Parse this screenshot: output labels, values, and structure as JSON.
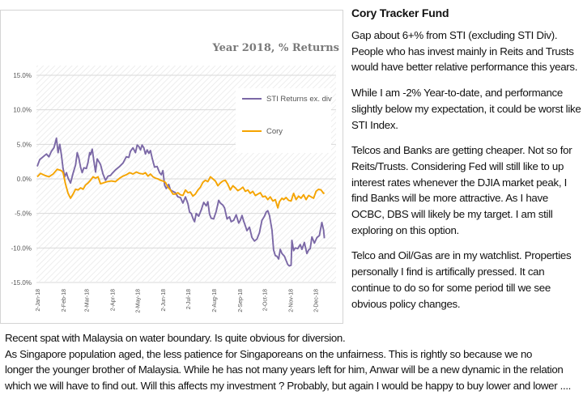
{
  "chart_data": {
    "type": "line",
    "title": "Year 2018, % Returns",
    "xlabel": "",
    "ylabel": "",
    "ylim": [
      -15,
      15
    ],
    "y_ticks": [
      15,
      10,
      5,
      0,
      -5,
      -10,
      -15
    ],
    "y_tick_labels": [
      "15.0%",
      "10.0%",
      "5.0%",
      "0.0%",
      "-5.0%",
      "-10.0%",
      "-15.0%"
    ],
    "x_range_days": [
      0,
      360
    ],
    "x_ticks": [
      {
        "day": 1,
        "label": "2-Jan-18"
      },
      {
        "day": 32,
        "label": "2-Feb-18"
      },
      {
        "day": 60,
        "label": "2-Mar-18"
      },
      {
        "day": 91,
        "label": "2-Apr-18"
      },
      {
        "day": 121,
        "label": "2-May-18"
      },
      {
        "day": 152,
        "label": "2-Jun-18"
      },
      {
        "day": 182,
        "label": "2-Jul-18"
      },
      {
        "day": 213,
        "label": "2-Aug-18"
      },
      {
        "day": 244,
        "label": "2-Sep-18"
      },
      {
        "day": 274,
        "label": "2-Oct-18"
      },
      {
        "day": 305,
        "label": "2-Nov-18"
      },
      {
        "day": 335,
        "label": "2-Dec-18"
      }
    ],
    "legend_position": "upper-right",
    "series": [
      {
        "name": "STI Returns ex. div",
        "color": "#7b68a6",
        "points": [
          [
            1,
            1.8
          ],
          [
            4,
            2.8
          ],
          [
            8,
            3.2
          ],
          [
            12,
            3.6
          ],
          [
            15,
            3.2
          ],
          [
            18,
            4.0
          ],
          [
            21,
            4.5
          ],
          [
            24,
            5.9
          ],
          [
            26,
            3.8
          ],
          [
            28,
            5.0
          ],
          [
            30,
            3.5
          ],
          [
            32,
            1.5
          ],
          [
            34,
            0.3
          ],
          [
            36,
            0.9
          ],
          [
            38,
            0.1
          ],
          [
            41,
            -0.6
          ],
          [
            44,
            0.8
          ],
          [
            47,
            2.0
          ],
          [
            49,
            3.8
          ],
          [
            51,
            3.0
          ],
          [
            53,
            1.7
          ],
          [
            55,
            0.9
          ],
          [
            57,
            1.6
          ],
          [
            60,
            1.5
          ],
          [
            62,
            2.4
          ],
          [
            64,
            3.8
          ],
          [
            65,
            3.5
          ],
          [
            67,
            4.3
          ],
          [
            69,
            2.6
          ],
          [
            71,
            1.0
          ],
          [
            73,
            2.9
          ],
          [
            75,
            2.5
          ],
          [
            77,
            2.1
          ],
          [
            80,
            0.7
          ],
          [
            83,
            -0.2
          ],
          [
            86,
            0.4
          ],
          [
            89,
            0.5
          ],
          [
            91,
            0.8
          ],
          [
            95,
            1.3
          ],
          [
            100,
            1.8
          ],
          [
            104,
            2.3
          ],
          [
            108,
            3.2
          ],
          [
            111,
            3.1
          ],
          [
            113,
            4.0
          ],
          [
            116,
            4.5
          ],
          [
            119,
            3.8
          ],
          [
            121,
            4.9
          ],
          [
            123,
            4.7
          ],
          [
            125,
            4.2
          ],
          [
            127,
            4.9
          ],
          [
            129,
            4.5
          ],
          [
            131,
            3.6
          ],
          [
            133,
            4.2
          ],
          [
            135,
            3.7
          ],
          [
            137,
            4.1
          ],
          [
            139,
            3.0
          ],
          [
            142,
            1.7
          ],
          [
            145,
            1.8
          ],
          [
            148,
            0.9
          ],
          [
            150,
            0.6
          ],
          [
            152,
            1.2
          ],
          [
            154,
            -0.9
          ],
          [
            156,
            -1.4
          ],
          [
            159,
            -0.8
          ],
          [
            161,
            -1.6
          ],
          [
            164,
            -1.8
          ],
          [
            167,
            -2.0
          ],
          [
            170,
            -2.6
          ],
          [
            173,
            -2.7
          ],
          [
            176,
            -3.5
          ],
          [
            179,
            -2.6
          ],
          [
            182,
            -3.6
          ],
          [
            184,
            -4.8
          ],
          [
            186,
            -5.0
          ],
          [
            188,
            -5.7
          ],
          [
            190,
            -6.2
          ],
          [
            192,
            -5.0
          ],
          [
            195,
            -5.4
          ],
          [
            198,
            -4.5
          ],
          [
            201,
            -3.4
          ],
          [
            204,
            -3.9
          ],
          [
            206,
            -3.3
          ],
          [
            208,
            -5.1
          ],
          [
            210,
            -5.7
          ],
          [
            213,
            -5.8
          ],
          [
            216,
            -4.7
          ],
          [
            219,
            -3.1
          ],
          [
            221,
            -3.5
          ],
          [
            224,
            -3.8
          ],
          [
            226,
            -4.2
          ],
          [
            229,
            -5.8
          ],
          [
            232,
            -5.5
          ],
          [
            234,
            -6.2
          ],
          [
            237,
            -6.0
          ],
          [
            240,
            -5.2
          ],
          [
            243,
            -6.4
          ],
          [
            245,
            -6.0
          ],
          [
            247,
            -5.3
          ],
          [
            249,
            -6.1
          ],
          [
            251,
            -6.8
          ],
          [
            253,
            -7.5
          ],
          [
            256,
            -7.0
          ],
          [
            259,
            -8.5
          ],
          [
            262,
            -9.0
          ],
          [
            265,
            -8.7
          ],
          [
            268,
            -7.8
          ],
          [
            271,
            -6.0
          ],
          [
            274,
            -5.4
          ],
          [
            276,
            -4.8
          ],
          [
            278,
            -4.6
          ],
          [
            280,
            -5.3
          ],
          [
            283,
            -7.4
          ],
          [
            285,
            -10.3
          ],
          [
            287,
            -11.1
          ],
          [
            289,
            -11.2
          ],
          [
            291,
            -11.6
          ],
          [
            293,
            -10.2
          ],
          [
            295,
            -10.8
          ],
          [
            298,
            -11.2
          ],
          [
            300,
            -11.8
          ],
          [
            302,
            -12.4
          ],
          [
            304,
            -12.6
          ],
          [
            306,
            -12.5
          ],
          [
            307,
            -8.9
          ],
          [
            309,
            -10.4
          ],
          [
            311,
            -10.0
          ],
          [
            314,
            -10.1
          ],
          [
            317,
            -9.5
          ],
          [
            319,
            -10.2
          ],
          [
            322,
            -9.2
          ],
          [
            325,
            -10.8
          ],
          [
            327,
            -10.3
          ],
          [
            329,
            -10.1
          ],
          [
            331,
            -8.4
          ],
          [
            334,
            -9.3
          ],
          [
            337,
            -8.5
          ],
          [
            340,
            -8.2
          ],
          [
            343,
            -6.3
          ],
          [
            345,
            -7.4
          ],
          [
            346,
            -8.6
          ]
        ]
      },
      {
        "name": "Cory",
        "color": "#f5a400",
        "points": [
          [
            1,
            0.3
          ],
          [
            5,
            0.8
          ],
          [
            10,
            0.5
          ],
          [
            15,
            0.3
          ],
          [
            20,
            0.7
          ],
          [
            25,
            1.4
          ],
          [
            30,
            1.2
          ],
          [
            32,
            0.9
          ],
          [
            35,
            -0.8
          ],
          [
            38,
            -2.1
          ],
          [
            41,
            -2.8
          ],
          [
            44,
            -2.2
          ],
          [
            47,
            -1.5
          ],
          [
            50,
            -1.6
          ],
          [
            53,
            -1.3
          ],
          [
            56,
            -1.5
          ],
          [
            59,
            -0.9
          ],
          [
            62,
            -0.6
          ],
          [
            65,
            -0.2
          ],
          [
            68,
            0.3
          ],
          [
            71,
            0.1
          ],
          [
            74,
            0.3
          ],
          [
            77,
            -0.7
          ],
          [
            80,
            -0.6
          ],
          [
            85,
            -0.4
          ],
          [
            90,
            -0.3
          ],
          [
            95,
            -0.4
          ],
          [
            100,
            0.1
          ],
          [
            104,
            0.4
          ],
          [
            108,
            0.6
          ],
          [
            112,
            0.9
          ],
          [
            116,
            0.7
          ],
          [
            120,
            1.0
          ],
          [
            124,
            0.8
          ],
          [
            128,
            0.7
          ],
          [
            131,
            0.9
          ],
          [
            134,
            0.4
          ],
          [
            137,
            0.7
          ],
          [
            140,
            0.3
          ],
          [
            143,
            0.1
          ],
          [
            146,
            0.0
          ],
          [
            149,
            -0.2
          ],
          [
            152,
            -0.3
          ],
          [
            155,
            -0.5
          ],
          [
            158,
            -1.2
          ],
          [
            161,
            -1.6
          ],
          [
            164,
            -2.2
          ],
          [
            167,
            -2.2
          ],
          [
            170,
            -2.0
          ],
          [
            173,
            -2.3
          ],
          [
            176,
            -2.4
          ],
          [
            179,
            -1.6
          ],
          [
            182,
            -2.0
          ],
          [
            185,
            -1.9
          ],
          [
            188,
            -2.5
          ],
          [
            191,
            -2.2
          ],
          [
            194,
            -1.6
          ],
          [
            197,
            -1.2
          ],
          [
            200,
            -0.5
          ],
          [
            203,
            -0.2
          ],
          [
            206,
            -0.4
          ],
          [
            209,
            0.3
          ],
          [
            212,
            0.0
          ],
          [
            215,
            -0.3
          ],
          [
            218,
            -1.0
          ],
          [
            221,
            -0.6
          ],
          [
            224,
            -0.3
          ],
          [
            227,
            -0.2
          ],
          [
            230,
            -0.8
          ],
          [
            233,
            -1.6
          ],
          [
            236,
            -1.0
          ],
          [
            239,
            -1.3
          ],
          [
            242,
            -1.7
          ],
          [
            245,
            -1.5
          ],
          [
            248,
            -1.2
          ],
          [
            251,
            -1.8
          ],
          [
            254,
            -1.6
          ],
          [
            257,
            -2.1
          ],
          [
            260,
            -1.8
          ],
          [
            263,
            -2.4
          ],
          [
            266,
            -2.2
          ],
          [
            269,
            -2.0
          ],
          [
            272,
            -2.6
          ],
          [
            275,
            -2.5
          ],
          [
            278,
            -3.0
          ],
          [
            281,
            -2.6
          ],
          [
            284,
            -3.2
          ],
          [
            287,
            -3.0
          ],
          [
            290,
            -4.2
          ],
          [
            292,
            -3.3
          ],
          [
            295,
            -2.8
          ],
          [
            297,
            -3.0
          ],
          [
            300,
            -2.7
          ],
          [
            303,
            -3.1
          ],
          [
            306,
            -3.2
          ],
          [
            309,
            -2.1
          ],
          [
            312,
            -3.0
          ],
          [
            315,
            -2.5
          ],
          [
            318,
            -2.8
          ],
          [
            321,
            -2.3
          ],
          [
            324,
            -3.0
          ],
          [
            327,
            -2.4
          ],
          [
            330,
            -2.6
          ],
          [
            333,
            -2.8
          ],
          [
            336,
            -1.8
          ],
          [
            339,
            -1.5
          ],
          [
            342,
            -1.6
          ],
          [
            345,
            -2.1
          ],
          [
            346,
            -2.0
          ]
        ]
      }
    ]
  },
  "panel": {
    "title": "Cory Tracker Fund",
    "paragraphs": [
      "Gap about 6+% from STI (excluding STI Div). People who has invest mainly in Reits and Trusts would have better relative performance this years.",
      "While I am -2% Year-to-date, and performance slightly below my expectation, it could be worst like STI Index.",
      "Telcos and Banks are getting cheaper. Not so for Reits/Trusts. Considering Fed will still like to up interest rates whenever the DJIA market peak, I find Banks will be more attractive.  As I have OCBC, DBS will likely be my target. I am still exploring on this option.",
      "Telco and Oil/Gas are in my watchlist. Properties personally I find is artifically pressed. It can continue to do so for some period till we see obvious  policy changes."
    ]
  },
  "bottom": {
    "lines": [
      "Recent spat with Malaysia on water boundary. Is quite obvious for diversion.",
      "As Singapore  population aged, the less patience for Singaporeans on the unfairness. This is rightly so because we no",
      "longer the younger brother of Malaysia. While he has not many years left for him,  Anwar will be a new dynamic in the relation",
      "which we will have to find out. Will this affects my investment ? Probably, but again I would be happy to buy lower and lower ...."
    ]
  }
}
